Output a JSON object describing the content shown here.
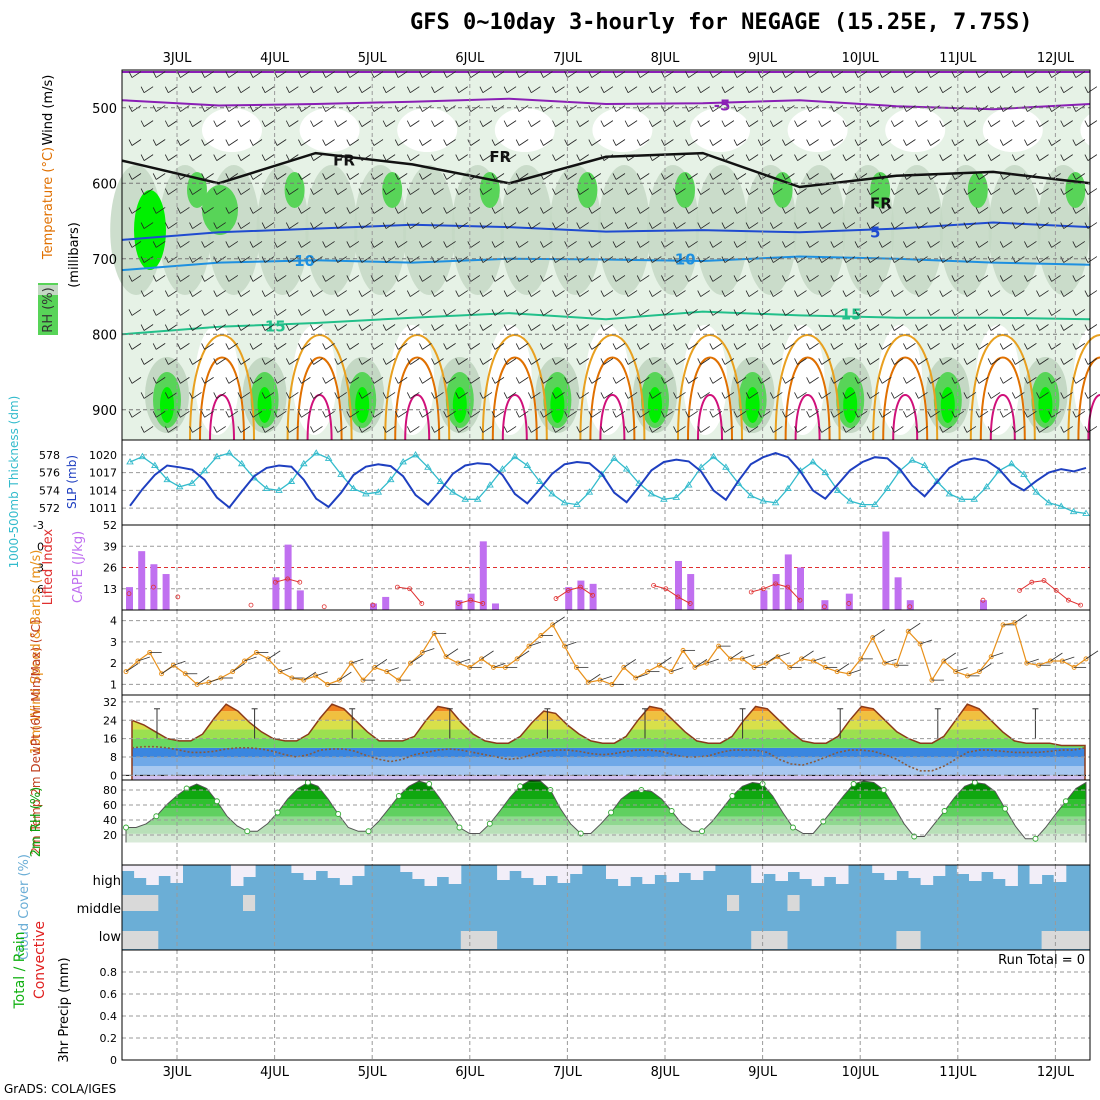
{
  "title": "GFS 0~10day 3-hourly for NEGAGE (15.25E, 7.75S)",
  "footer": "GrADS: COLA/IGES",
  "day_labels": [
    "3JUL",
    "4JUL",
    "5JUL",
    "6JUL",
    "7JUL",
    "8JUL",
    "9JUL",
    "10JUL",
    "11JUL",
    "12JUL"
  ],
  "colors": {
    "rh_light": "#e6f2e6",
    "rh_mid": "#c4d8c4",
    "rh_green": "#58d458",
    "rh_bright": "#00f000",
    "purple": "#8a1fb5",
    "blue": "#1f4bd0",
    "lightblue": "#1e90e0",
    "teal": "#22c08a",
    "orange": "#e8a020",
    "darkorange": "#e07000",
    "magenta": "#d0107a",
    "thickness": "#33bbcc",
    "slp": "#1e3fc0",
    "cape": "#c070f0",
    "li": "#e03030",
    "wind": "#e8901a",
    "cloud": "#6baed6",
    "cloud_light": "#f2eef8",
    "cloud_gray": "#d9d9d9"
  },
  "chart_data": [
    {
      "panel": "upper_air",
      "type": "heatmap",
      "ylabel": "(millibars)",
      "legend_labels": [
        "Wind (m/s)",
        "Temperature (°C)",
        "RH (%)"
      ],
      "ylim": [
        450,
        940
      ],
      "yticks": [
        500,
        600,
        700,
        800,
        900
      ],
      "contour_labels": [
        {
          "text": "-5",
          "x": 5.5,
          "y": 497
        },
        {
          "text": "FR",
          "x": 1.6,
          "y": 570
        },
        {
          "text": "FR",
          "x": 3.2,
          "y": 565
        },
        {
          "text": "FR",
          "x": 7.1,
          "y": 627
        },
        {
          "text": "5",
          "x": 7.1,
          "y": 665
        },
        {
          "text": "10",
          "x": 1.2,
          "y": 703
        },
        {
          "text": "10",
          "x": 5.1,
          "y": 701
        },
        {
          "text": "15",
          "x": 0.9,
          "y": 790
        },
        {
          "text": "15",
          "x": 6.8,
          "y": 774
        }
      ],
      "temp_lines": [
        {
          "label": "-5",
          "y": [
            490,
            497,
            495,
            492,
            488,
            495,
            494,
            490,
            498,
            502,
            495
          ]
        },
        {
          "label": "FR",
          "y": [
            570,
            600,
            560,
            575,
            600,
            565,
            560,
            605,
            590,
            585,
            600
          ]
        },
        {
          "label": "5",
          "y": [
            675,
            665,
            660,
            655,
            658,
            664,
            662,
            665,
            660,
            652,
            658
          ]
        },
        {
          "label": "10",
          "y": [
            715,
            705,
            702,
            705,
            700,
            701,
            703,
            697,
            700,
            705,
            708
          ]
        },
        {
          "label": "15",
          "y": [
            800,
            790,
            785,
            778,
            772,
            780,
            770,
            775,
            778,
            778,
            780
          ]
        }
      ]
    },
    {
      "panel": "thickness_slp",
      "type": "line",
      "ylabel_left": "1000-500mb Thickness (dm)",
      "ylabel_right": "SLP (mb)",
      "left_ticks": [
        572,
        574,
        576,
        578
      ],
      "right_ticks": [
        1011,
        1014,
        1017,
        1020
      ],
      "ylim_left": [
        571,
        579
      ],
      "ylim_right": [
        1009.5,
        1021.5
      ],
      "x": [
        0,
        0.125,
        0.25,
        0.375,
        0.5,
        0.625,
        0.75,
        0.875,
        1,
        1.125,
        1.25,
        1.375,
        1.5,
        1.625,
        1.75,
        1.875,
        2,
        2.125,
        2.25,
        2.375,
        2.5,
        2.625,
        2.75,
        2.875,
        3,
        3.125,
        3.25,
        3.375,
        3.5,
        3.625,
        3.75,
        3.875,
        4,
        4.125,
        4.25,
        4.375,
        4.5,
        4.625,
        4.75,
        4.875,
        5,
        5.125,
        5.25,
        5.375,
        5.5,
        5.625,
        5.75,
        5.875,
        6,
        6.125,
        6.25,
        6.375,
        6.5,
        6.625,
        6.75,
        6.875,
        7,
        7.125,
        7.25,
        7.375,
        7.5,
        7.625,
        7.75,
        7.875,
        8,
        8.125,
        8.25,
        8.375,
        8.5,
        8.625,
        8.75,
        8.875,
        9,
        9.125,
        9.25,
        9.375,
        9.5,
        9.625
      ],
      "series": [
        {
          "name": "Thickness",
          "axis": "left",
          "values": [
            577.2,
            577.8,
            576.8,
            575.2,
            574.4,
            574.8,
            576.2,
            577.8,
            578.2,
            577.0,
            575.4,
            574.2,
            574.0,
            575.0,
            577.0,
            578.2,
            577.6,
            575.8,
            574.2,
            573.6,
            573.8,
            575.2,
            577.2,
            578.0,
            576.6,
            575.0,
            573.8,
            573.0,
            573.0,
            574.6,
            576.4,
            577.8,
            576.8,
            575.0,
            573.6,
            572.6,
            572.4,
            573.8,
            575.8,
            577.6,
            576.4,
            574.8,
            573.6,
            573.0,
            573.2,
            574.6,
            576.6,
            577.8,
            576.6,
            574.8,
            573.4,
            572.8,
            572.6,
            574.2,
            576.2,
            577.2,
            576.0,
            574.0,
            572.8,
            572.4,
            572.4,
            574.2,
            576.2,
            577.4,
            576.8,
            575.0,
            573.6,
            573.0,
            573.0,
            574.4,
            576.2,
            577.0,
            575.8,
            573.8,
            572.6,
            572.2,
            571.6,
            571.4
          ]
        },
        {
          "name": "SLP",
          "axis": "right",
          "values": [
            1011.4,
            1014.2,
            1016.6,
            1018.2,
            1017.9,
            1017.5,
            1015.8,
            1012.8,
            1011.1,
            1013.8,
            1016.4,
            1017.8,
            1018.2,
            1018.0,
            1015.8,
            1012.6,
            1011.2,
            1013.6,
            1016.6,
            1018.0,
            1018.4,
            1018.1,
            1016.4,
            1013.2,
            1011.6,
            1014.0,
            1016.8,
            1018.2,
            1018.6,
            1018.4,
            1016.6,
            1013.4,
            1011.8,
            1014.2,
            1016.8,
            1018.4,
            1018.8,
            1018.6,
            1016.8,
            1013.6,
            1012.0,
            1014.6,
            1017.4,
            1018.8,
            1019.2,
            1018.9,
            1017.2,
            1014.0,
            1012.4,
            1015.6,
            1018.4,
            1019.6,
            1020.3,
            1019.6,
            1017.2,
            1014.0,
            1012.6,
            1015.0,
            1017.4,
            1018.8,
            1019.6,
            1019.4,
            1017.6,
            1014.8,
            1013.0,
            1015.4,
            1017.8,
            1019.0,
            1019.4,
            1019.0,
            1017.6,
            1015.2,
            1014.0,
            1015.6,
            1017.0,
            1017.6,
            1017.2,
            1017.8
          ]
        }
      ]
    },
    {
      "panel": "cape_li",
      "type": "bar",
      "ylabel_left": "Lifted Index",
      "ylabel_right": "CAPE (J/kg)",
      "left_ticks": [
        "-3",
        "0",
        "3",
        "6"
      ],
      "right_ticks": [
        13,
        26,
        39,
        52
      ],
      "ylim": [
        0,
        52
      ],
      "reference_line": 26,
      "cape_bars": [
        [
          0,
          14
        ],
        [
          0.125,
          36
        ],
        [
          0.25,
          28
        ],
        [
          0.375,
          22
        ],
        [
          1.5,
          20
        ],
        [
          1.625,
          40
        ],
        [
          1.75,
          12
        ],
        [
          2.5,
          4
        ],
        [
          2.625,
          8
        ],
        [
          3.375,
          6
        ],
        [
          3.5,
          10
        ],
        [
          3.625,
          42
        ],
        [
          3.75,
          4
        ],
        [
          4.5,
          14
        ],
        [
          4.625,
          18
        ],
        [
          4.75,
          16
        ],
        [
          5.625,
          30
        ],
        [
          5.75,
          22
        ],
        [
          6.5,
          12
        ],
        [
          6.625,
          22
        ],
        [
          6.75,
          34
        ],
        [
          6.875,
          26
        ],
        [
          7.125,
          6
        ],
        [
          7.375,
          10
        ],
        [
          7.75,
          48
        ],
        [
          7.875,
          20
        ],
        [
          8.0,
          6
        ],
        [
          8.75,
          6
        ]
      ],
      "li_values": [
        [
          0,
          10
        ],
        [
          0.25,
          14
        ],
        [
          0.5,
          8
        ],
        [
          1.25,
          3
        ],
        [
          1.5,
          17
        ],
        [
          1.625,
          19
        ],
        [
          1.75,
          17
        ],
        [
          2.0,
          2
        ],
        [
          2.5,
          3
        ],
        [
          2.75,
          14
        ],
        [
          2.875,
          13
        ],
        [
          3.0,
          4
        ],
        [
          3.375,
          4
        ],
        [
          3.5,
          6
        ],
        [
          3.625,
          4
        ],
        [
          4.375,
          7
        ],
        [
          4.5,
          12
        ],
        [
          4.625,
          14
        ],
        [
          4.75,
          9
        ],
        [
          5.375,
          15
        ],
        [
          5.5,
          13
        ],
        [
          5.625,
          8
        ],
        [
          5.75,
          4
        ],
        [
          6.375,
          11
        ],
        [
          6.5,
          13
        ],
        [
          6.625,
          16
        ],
        [
          6.75,
          14
        ],
        [
          6.875,
          6
        ],
        [
          7.125,
          2
        ],
        [
          7.375,
          4
        ],
        [
          8.0,
          2
        ],
        [
          8.75,
          6
        ],
        [
          9.125,
          12
        ],
        [
          9.25,
          17
        ],
        [
          9.375,
          18
        ],
        [
          9.5,
          12
        ],
        [
          9.625,
          6
        ],
        [
          9.75,
          3
        ]
      ]
    },
    {
      "panel": "wind10m",
      "type": "line",
      "ylabel": "10m Wind Speed & Barbs (m/s)",
      "yticks": [
        1,
        2,
        3,
        4
      ],
      "ylim": [
        0.5,
        4.5
      ],
      "values": [
        1.6,
        2.1,
        2.5,
        1.5,
        1.9,
        1.5,
        1.0,
        1.1,
        1.3,
        1.6,
        2.1,
        2.5,
        2.2,
        1.6,
        1.3,
        1.2,
        1.4,
        1.0,
        1.2,
        2.0,
        1.2,
        1.8,
        1.6,
        1.2,
        2.0,
        2.5,
        3.4,
        2.3,
        2.0,
        1.8,
        2.2,
        1.8,
        1.8,
        2.2,
        2.8,
        3.3,
        3.8,
        2.8,
        1.8,
        1.1,
        1.2,
        1.0,
        1.8,
        1.3,
        1.6,
        1.9,
        1.6,
        2.6,
        1.8,
        2.0,
        2.8,
        2.2,
        2.2,
        1.8,
        2.0,
        2.3,
        1.8,
        2.2,
        2.1,
        1.8,
        1.6,
        1.5,
        2.2,
        3.2,
        2.0,
        1.9,
        3.5,
        2.9,
        1.2,
        2.1,
        1.6,
        1.4,
        1.6,
        2.3,
        3.8,
        3.9,
        2.0,
        1.9,
        2.1,
        2.1,
        1.8,
        2.2
      ]
    },
    {
      "panel": "temp2m",
      "type": "area",
      "ylabel": "2m Temp 2m DewPt (6hr Min/Max) (°C)",
      "yticks": [
        0,
        8,
        16,
        24,
        32
      ],
      "ylim": [
        -2,
        35
      ],
      "temp": [
        24,
        22,
        19,
        16,
        15,
        15,
        18,
        25,
        31,
        28,
        23,
        19,
        16,
        15,
        15,
        18,
        25,
        31,
        29,
        24,
        19,
        15,
        15,
        15,
        17,
        24,
        30,
        29,
        23,
        18,
        15,
        14,
        14,
        17,
        23,
        28,
        27,
        22,
        18,
        15,
        14,
        14,
        17,
        24,
        30,
        29,
        24,
        19,
        15,
        14,
        14,
        17,
        24,
        30,
        29,
        24,
        19,
        15,
        14,
        14,
        17,
        24,
        30,
        29,
        24,
        19,
        16,
        14,
        14,
        17,
        24,
        31,
        29,
        24,
        19,
        15,
        14,
        14,
        14,
        13,
        13,
        13
      ],
      "dewpt": [
        12,
        12.5,
        12.5,
        12,
        11,
        10,
        10,
        10.5,
        11.5,
        12,
        12,
        11.5,
        10.5,
        9,
        8,
        9,
        11,
        11.5,
        11.5,
        10.5,
        8.5,
        7,
        6,
        7,
        9,
        10,
        11,
        11.5,
        11,
        10,
        9,
        8,
        7,
        7.5,
        9,
        10.5,
        11,
        11,
        10.5,
        9.5,
        9,
        9.5,
        10.5,
        11,
        11,
        10.5,
        9,
        8,
        8,
        8.5,
        10,
        11,
        11,
        11,
        10,
        7,
        5,
        4.5,
        6,
        8,
        10,
        11,
        11,
        10.5,
        9,
        7,
        4,
        2,
        2,
        4,
        7,
        10,
        11,
        11,
        10.5,
        10,
        10,
        10,
        10.5,
        11,
        11,
        12
      ]
    },
    {
      "panel": "rh2m",
      "type": "area",
      "ylabel": "2m RH (%)",
      "yticks": [
        20,
        40,
        60,
        80
      ],
      "ylim": [
        0,
        100
      ],
      "values": [
        30,
        30,
        35,
        45,
        60,
        72,
        82,
        88,
        82,
        65,
        45,
        32,
        25,
        25,
        35,
        50,
        68,
        82,
        90,
        85,
        68,
        48,
        30,
        25,
        25,
        38,
        55,
        72,
        85,
        92,
        88,
        70,
        50,
        30,
        22,
        22,
        35,
        52,
        70,
        85,
        93,
        92,
        80,
        55,
        35,
        22,
        22,
        35,
        50,
        68,
        78,
        80,
        78,
        68,
        52,
        35,
        25,
        25,
        38,
        55,
        72,
        85,
        90,
        88,
        72,
        50,
        30,
        22,
        22,
        38,
        55,
        72,
        88,
        92,
        90,
        80,
        58,
        35,
        18,
        18,
        35,
        52,
        70,
        85,
        90,
        88,
        78,
        55,
        32,
        15,
        15,
        30,
        48,
        65,
        82,
        90
      ]
    },
    {
      "panel": "cloud",
      "type": "heatmap",
      "ylabel": "Cloud Cover (%)",
      "row_labels": [
        "high",
        "middle",
        "low"
      ]
    },
    {
      "panel": "precip",
      "type": "bar",
      "ylabel": "3hr Precip (mm)",
      "legend_labels": [
        "Total / Rain",
        "Convective"
      ],
      "yticks": [
        0,
        0.2,
        0.4,
        0.6,
        0.8
      ],
      "ylim": [
        0,
        1
      ],
      "run_total": "Run Total = 0",
      "values": []
    }
  ]
}
